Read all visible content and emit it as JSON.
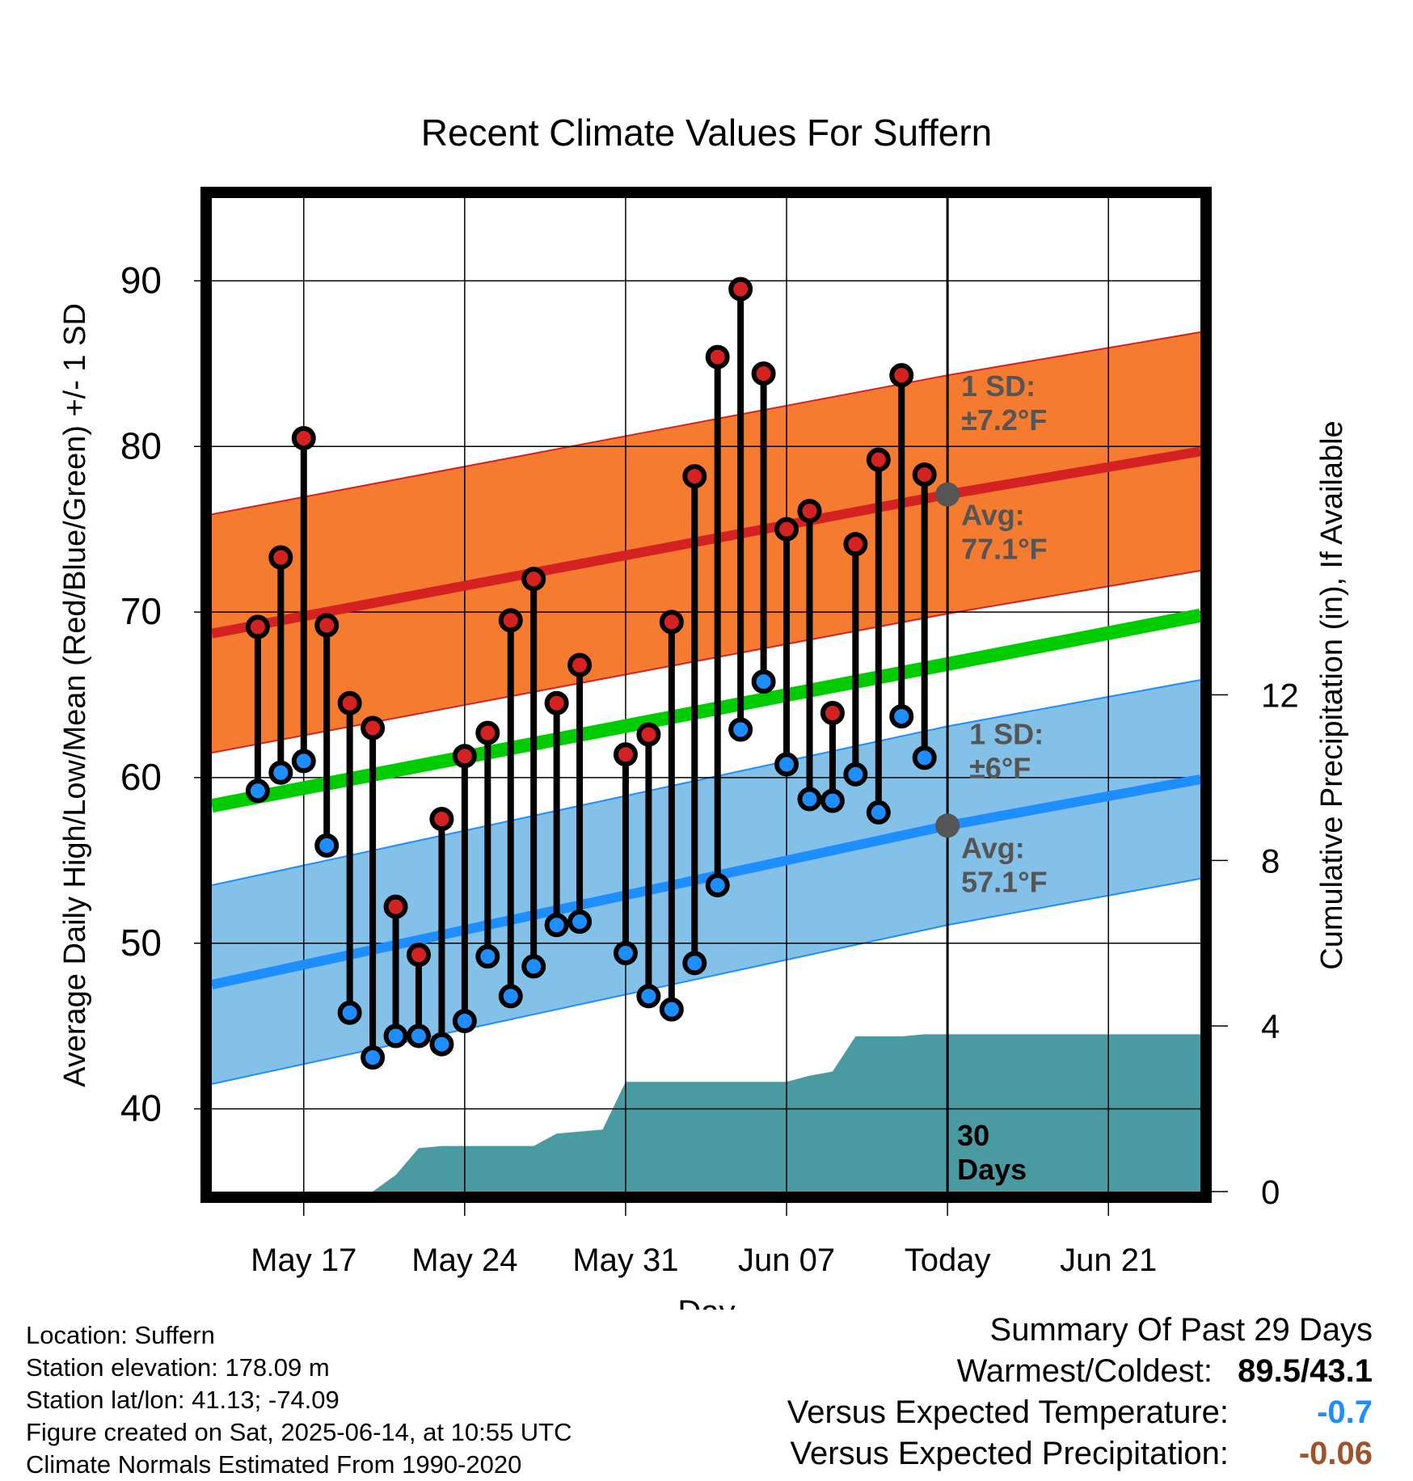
{
  "chart_data": {
    "type": "line",
    "title": "Recent Climate Values For Suffern",
    "xlabel": "Day",
    "ylabel": "Average Daily High/Low/Mean (Red/Blue/Green) +/- 1 SD",
    "y2label": "Cumulative Precipitation (in), If Available",
    "xlim": [
      "2025-05-13",
      "2025-06-25"
    ],
    "ylim": [
      35,
      95
    ],
    "y2lim": [
      0,
      24
    ],
    "x_tick_labels": [
      "May 17",
      "May 24",
      "May 31",
      "Jun 07",
      "Today",
      "Jun 21"
    ],
    "x_ticks": [
      "2025-05-17",
      "2025-05-24",
      "2025-05-31",
      "2025-06-07",
      "2025-06-14",
      "2025-06-21"
    ],
    "y_ticks": [
      40,
      50,
      60,
      70,
      80,
      90
    ],
    "y2_ticks": [
      0,
      4,
      8,
      12
    ],
    "today": "2025-06-14",
    "grid": true,
    "days": [
      "2025-05-15",
      "2025-05-16",
      "2025-05-17",
      "2025-05-18",
      "2025-05-19",
      "2025-05-20",
      "2025-05-21",
      "2025-05-22",
      "2025-05-23",
      "2025-05-24",
      "2025-05-25",
      "2025-05-26",
      "2025-05-27",
      "2025-05-28",
      "2025-05-29",
      "2025-05-31",
      "2025-06-01",
      "2025-06-02",
      "2025-06-03",
      "2025-06-04",
      "2025-06-05",
      "2025-06-06",
      "2025-06-07",
      "2025-06-08",
      "2025-06-09",
      "2025-06-10",
      "2025-06-11",
      "2025-06-12",
      "2025-06-13"
    ],
    "daily_high": [
      69.1,
      73.3,
      80.5,
      69.2,
      64.5,
      63.0,
      52.2,
      49.3,
      57.5,
      61.3,
      62.7,
      69.5,
      72.0,
      64.5,
      66.8,
      61.4,
      62.6,
      69.4,
      78.2,
      85.4,
      89.5,
      84.4,
      75.0,
      76.1,
      63.9,
      74.1,
      79.2,
      84.3,
      78.3
    ],
    "daily_low": [
      59.2,
      60.3,
      61.0,
      55.9,
      45.8,
      43.1,
      44.4,
      44.4,
      43.9,
      45.3,
      49.2,
      46.8,
      48.6,
      51.1,
      51.3,
      49.4,
      46.8,
      46.0,
      48.8,
      53.5,
      62.9,
      65.8,
      60.8,
      58.7,
      58.6,
      60.2,
      57.9,
      63.7,
      61.2
    ],
    "normal_high": {
      "x": [
        "2025-05-13",
        "2025-06-14",
        "2025-06-25"
      ],
      "y": [
        68.7,
        77.1,
        79.7
      ]
    },
    "normal_low": {
      "x": [
        "2025-05-13",
        "2025-06-14",
        "2025-06-25"
      ],
      "y": [
        47.5,
        57.1,
        59.9
      ]
    },
    "normal_mean": {
      "x": [
        "2025-05-13",
        "2025-06-25"
      ],
      "y": [
        58.3,
        69.8
      ]
    },
    "high_sd": 7.2,
    "low_sd": 6,
    "precip": {
      "x": [
        "2025-05-19",
        "2025-05-20",
        "2025-05-21",
        "2025-05-22",
        "2025-05-23",
        "2025-05-24",
        "2025-05-25",
        "2025-05-26",
        "2025-05-27",
        "2025-05-28",
        "2025-05-29",
        "2025-05-30",
        "2025-05-31",
        "2025-06-01",
        "2025-06-02",
        "2025-06-03",
        "2025-06-04",
        "2025-06-05",
        "2025-06-06",
        "2025-06-07",
        "2025-06-08",
        "2025-06-09",
        "2025-06-10",
        "2025-06-11",
        "2025-06-12",
        "2025-06-13",
        "2025-06-14",
        "2025-06-25"
      ],
      "y": [
        0,
        0,
        0.4,
        1.05,
        1.1,
        1.1,
        1.1,
        1.1,
        1.1,
        1.4,
        1.45,
        1.5,
        2.65,
        2.65,
        2.65,
        2.65,
        2.65,
        2.65,
        2.65,
        2.65,
        2.8,
        2.9,
        3.75,
        3.75,
        3.75,
        3.8,
        3.8,
        3.8
      ]
    },
    "annotations": {
      "high_sd_label": [
        "1 SD:",
        "±7.2°F"
      ],
      "high_avg_label": [
        "Avg:",
        "77.1°F"
      ],
      "low_sd_label": [
        "1 SD:",
        "±6°F"
      ],
      "low_avg_label": [
        "Avg:",
        "57.1°F"
      ],
      "days_label": [
        "30",
        "Days"
      ]
    },
    "colors": {
      "high_band": "#f47b30",
      "high_line": "#d42222",
      "low_band": "#84c1e8",
      "low_line": "#1e8eff",
      "mean_line": "#00cc00",
      "precip": "#4a9aa2",
      "high_point": "#d42222",
      "low_point": "#1e8eff",
      "annotation": "#555555",
      "frame": "#000000"
    }
  },
  "info": {
    "location": "Location: Suffern",
    "elevation": "Station elevation: 178.09 m",
    "latlon": "Station lat/lon: 41.13; -74.09",
    "created": "Figure created on Sat, 2025-06-14, at 10:55 UTC",
    "normals": "Climate Normals Estimated From 1990-2020"
  },
  "summary": {
    "title": "Summary Of Past 29 Days",
    "warmest_label": "Warmest/Coldest:",
    "warmest_value": "89.5/43.1",
    "temp_label": "Versus Expected Temperature:",
    "temp_value": "-0.7",
    "temp_color": "#1e8eff",
    "precip_label": "Versus Expected Precipitation:",
    "precip_value": "-0.06",
    "precip_color": "#a0522d"
  }
}
